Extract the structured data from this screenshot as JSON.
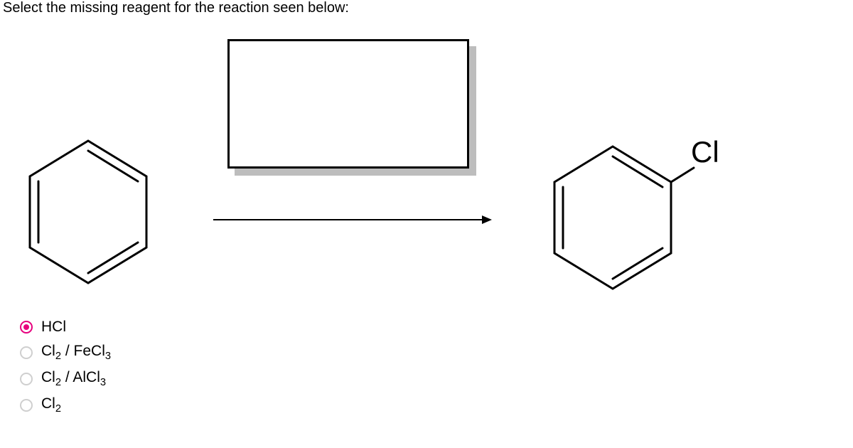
{
  "question": "Select the missing reagent for the reaction seen below:",
  "product_label": "Cl",
  "benzene": {
    "stroke": "#000000",
    "stroke_width": 3,
    "size": 190
  },
  "arrow": {
    "length": 380,
    "stroke": "#000000",
    "stroke_width": 2
  },
  "reagent_box": {
    "border_color": "#000000",
    "shadow_color": "#bdbdbd"
  },
  "options": [
    {
      "label_html": "HCl",
      "selected": true
    },
    {
      "label_html": "Cl<sub>2</sub> / FeCl<sub>3</sub>",
      "selected": false
    },
    {
      "label_html": "Cl<sub>2</sub> / AlCl<sub>3</sub>",
      "selected": false
    },
    {
      "label_html": "Cl<sub>2</sub>",
      "selected": false
    }
  ],
  "colors": {
    "accent": "#e6007e",
    "radio_border": "#cfcfcf",
    "text": "#000000",
    "bg": "#ffffff"
  }
}
